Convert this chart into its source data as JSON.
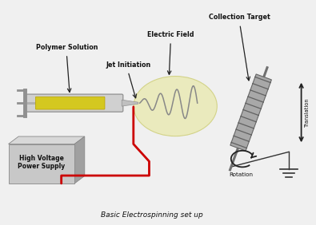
{
  "bg_color": "#f0f0f0",
  "title": "Basic Electrospinning set up",
  "labels": {
    "polymer_solution": "Polymer Solution",
    "jet_initiation": "Jet Initiation",
    "electric_field": "Electric Field",
    "collection_target": "Collection Target",
    "high_voltage": "High Voltage\nPower Supply",
    "rotation": "Rotation",
    "translation": "Translation"
  },
  "colors": {
    "syringe_body": "#d8d8d8",
    "syringe_liquid": "#d4c820",
    "syringe_needle": "#b8b8b8",
    "power_supply_face": "#c8c8c8",
    "power_supply_side": "#a0a0a0",
    "power_supply_top": "#d8d8d8",
    "red_wire": "#cc0000",
    "electric_field_ellipse": "#eaeab8",
    "spiral": "#888888",
    "collector": "#909090",
    "collector_stripe": "#606060",
    "arrow_color": "#222222",
    "text_color": "#111111"
  }
}
